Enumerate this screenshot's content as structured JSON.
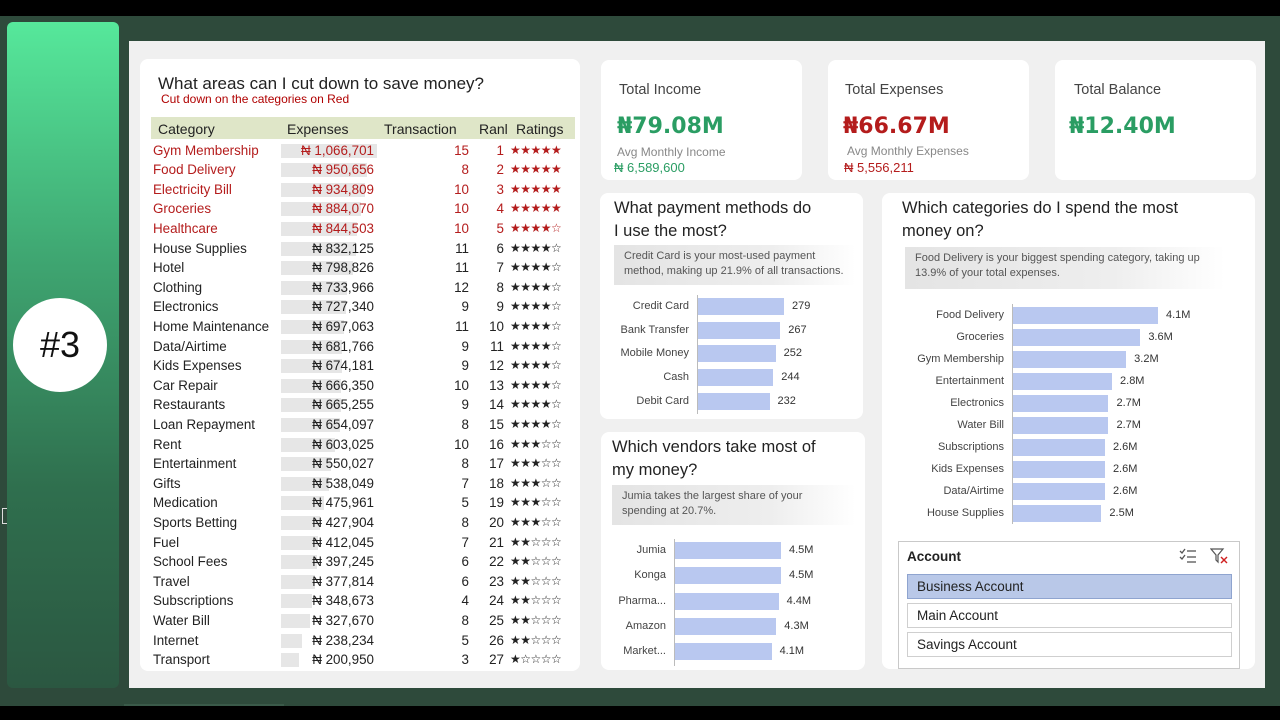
{
  "sidebar": {
    "badge": "#3"
  },
  "table_card": {
    "title": "What areas can I cut down to save money?",
    "subtitle": "Cut down on the categories on Red",
    "headers": {
      "category": "Category",
      "expenses": "Expenses",
      "transaction": "Transaction",
      "rank": "Ranl",
      "ratings": "Ratings"
    },
    "rows": [
      {
        "category": "Gym Membership",
        "expenses": "₦ 1,066,701",
        "transaction": "15",
        "rank": "1",
        "stars": "★★★★★",
        "red": true,
        "value": 1066701
      },
      {
        "category": "Food Delivery",
        "expenses": "₦ 950,656",
        "transaction": "8",
        "rank": "2",
        "stars": "★★★★★",
        "red": true,
        "value": 950656
      },
      {
        "category": "Electricity Bill",
        "expenses": "₦ 934,809",
        "transaction": "10",
        "rank": "3",
        "stars": "★★★★★",
        "red": true,
        "value": 934809
      },
      {
        "category": "Groceries",
        "expenses": "₦ 884,070",
        "transaction": "10",
        "rank": "4",
        "stars": "★★★★★",
        "red": true,
        "value": 884070
      },
      {
        "category": "Healthcare",
        "expenses": "₦ 844,503",
        "transaction": "10",
        "rank": "5",
        "stars": "★★★★☆",
        "red": true,
        "value": 844503
      },
      {
        "category": "House Supplies",
        "expenses": "₦ 832,125",
        "transaction": "11",
        "rank": "6",
        "stars": "★★★★☆",
        "red": false,
        "value": 832125
      },
      {
        "category": "Hotel",
        "expenses": "₦ 798,826",
        "transaction": "11",
        "rank": "7",
        "stars": "★★★★☆",
        "red": false,
        "value": 798826
      },
      {
        "category": "Clothing",
        "expenses": "₦ 733,966",
        "transaction": "12",
        "rank": "8",
        "stars": "★★★★☆",
        "red": false,
        "value": 733966
      },
      {
        "category": "Electronics",
        "expenses": "₦ 727,340",
        "transaction": "9",
        "rank": "9",
        "stars": "★★★★☆",
        "red": false,
        "value": 727340
      },
      {
        "category": "Home Maintenance",
        "expenses": "₦ 697,063",
        "transaction": "11",
        "rank": "10",
        "stars": "★★★★☆",
        "red": false,
        "value": 697063
      },
      {
        "category": "Data/Airtime",
        "expenses": "₦ 681,766",
        "transaction": "9",
        "rank": "11",
        "stars": "★★★★☆",
        "red": false,
        "value": 681766
      },
      {
        "category": "Kids Expenses",
        "expenses": "₦ 674,181",
        "transaction": "9",
        "rank": "12",
        "stars": "★★★★☆",
        "red": false,
        "value": 674181
      },
      {
        "category": "Car Repair",
        "expenses": "₦ 666,350",
        "transaction": "10",
        "rank": "13",
        "stars": "★★★★☆",
        "red": false,
        "value": 666350
      },
      {
        "category": "Restaurants",
        "expenses": "₦ 665,255",
        "transaction": "9",
        "rank": "14",
        "stars": "★★★★☆",
        "red": false,
        "value": 665255
      },
      {
        "category": "Loan Repayment",
        "expenses": "₦ 654,097",
        "transaction": "8",
        "rank": "15",
        "stars": "★★★★☆",
        "red": false,
        "value": 654097
      },
      {
        "category": "Rent",
        "expenses": "₦ 603,025",
        "transaction": "10",
        "rank": "16",
        "stars": "★★★☆☆",
        "red": false,
        "value": 603025
      },
      {
        "category": "Entertainment",
        "expenses": "₦ 550,027",
        "transaction": "8",
        "rank": "17",
        "stars": "★★★☆☆",
        "red": false,
        "value": 550027
      },
      {
        "category": "Gifts",
        "expenses": "₦ 538,049",
        "transaction": "7",
        "rank": "18",
        "stars": "★★★☆☆",
        "red": false,
        "value": 538049
      },
      {
        "category": "Medication",
        "expenses": "₦ 475,961",
        "transaction": "5",
        "rank": "19",
        "stars": "★★★☆☆",
        "red": false,
        "value": 475961
      },
      {
        "category": "Sports Betting",
        "expenses": "₦ 427,904",
        "transaction": "8",
        "rank": "20",
        "stars": "★★★☆☆",
        "red": false,
        "value": 427904
      },
      {
        "category": "Fuel",
        "expenses": "₦ 412,045",
        "transaction": "7",
        "rank": "21",
        "stars": "★★☆☆☆",
        "red": false,
        "value": 412045
      },
      {
        "category": "School Fees",
        "expenses": "₦ 397,245",
        "transaction": "6",
        "rank": "22",
        "stars": "★★☆☆☆",
        "red": false,
        "value": 397245
      },
      {
        "category": "Travel",
        "expenses": "₦ 377,814",
        "transaction": "6",
        "rank": "23",
        "stars": "★★☆☆☆",
        "red": false,
        "value": 377814
      },
      {
        "category": "Subscriptions",
        "expenses": "₦ 348,673",
        "transaction": "4",
        "rank": "24",
        "stars": "★★☆☆☆",
        "red": false,
        "value": 348673
      },
      {
        "category": "Water Bill",
        "expenses": "₦ 327,670",
        "transaction": "8",
        "rank": "25",
        "stars": "★★☆☆☆",
        "red": false,
        "value": 327670
      },
      {
        "category": "Internet",
        "expenses": "₦ 238,234",
        "transaction": "5",
        "rank": "26",
        "stars": "★★☆☆☆",
        "red": false,
        "value": 238234
      },
      {
        "category": "Transport",
        "expenses": "₦ 200,950",
        "transaction": "3",
        "rank": "27",
        "stars": "★☆☆☆☆",
        "red": false,
        "value": 200950
      }
    ]
  },
  "kpis": {
    "income": {
      "label": "Total Income",
      "value": "₦79.08M",
      "sub_label": "Avg Monthly Income",
      "sub_value": "₦ 6,589,600",
      "color": "#2a9d63"
    },
    "expenses": {
      "label": "Total Expenses",
      "value": "₦66.67M",
      "sub_label": "Avg Monthly Expenses",
      "sub_value": "₦ 5,556,211",
      "color": "#b41c1c"
    },
    "balance": {
      "label": "Total Balance",
      "value": "₦12.40M",
      "color": "#2a9d63"
    }
  },
  "payment_card": {
    "title_line1": "What payment methods do",
    "title_line2": "I use the most?",
    "insight": "Credit Card is your most-used payment method, making up 21.9% of all transactions."
  },
  "vendor_card": {
    "title_line1": "Which vendors take most of",
    "title_line2": "my money?",
    "insight": "Jumia takes the largest share of your spending at 20.7%."
  },
  "category_card": {
    "title_line1": "Which categories do I spend the most",
    "title_line2": "money on?",
    "insight": "Food Delivery is your biggest spending category, taking up 13.9% of your total expenses."
  },
  "chart_data": [
    {
      "type": "bar",
      "id": "payment",
      "categories": [
        "Credit Card",
        "Bank Transfer",
        "Mobile Money",
        "Cash",
        "Debit Card"
      ],
      "values": [
        279,
        267,
        252,
        244,
        232
      ],
      "labels": [
        "279",
        "267",
        "252",
        "244",
        "232"
      ]
    },
    {
      "type": "bar",
      "id": "vendor",
      "categories": [
        "Jumia",
        "Konga",
        "Pharma...",
        "Amazon",
        "Market..."
      ],
      "values": [
        4.5,
        4.5,
        4.4,
        4.3,
        4.1
      ],
      "labels": [
        "4.5M",
        "4.5M",
        "4.4M",
        "4.3M",
        "4.1M"
      ]
    },
    {
      "type": "bar",
      "id": "category",
      "categories": [
        "Food Delivery",
        "Groceries",
        "Gym Membership",
        "Entertainment",
        "Electronics",
        "Water Bill",
        "Subscriptions",
        "Kids Expenses",
        "Data/Airtime",
        "House Supplies"
      ],
      "values": [
        4.1,
        3.6,
        3.2,
        2.8,
        2.7,
        2.7,
        2.6,
        2.6,
        2.6,
        2.5
      ],
      "labels": [
        "4.1M",
        "3.6M",
        "3.2M",
        "2.8M",
        "2.7M",
        "2.7M",
        "2.6M",
        "2.6M",
        "2.6M",
        "2.5M"
      ]
    }
  ],
  "slicer": {
    "title": "Account",
    "items": [
      "Business Account",
      "Main Account",
      "Savings Account"
    ],
    "selected": 0
  }
}
